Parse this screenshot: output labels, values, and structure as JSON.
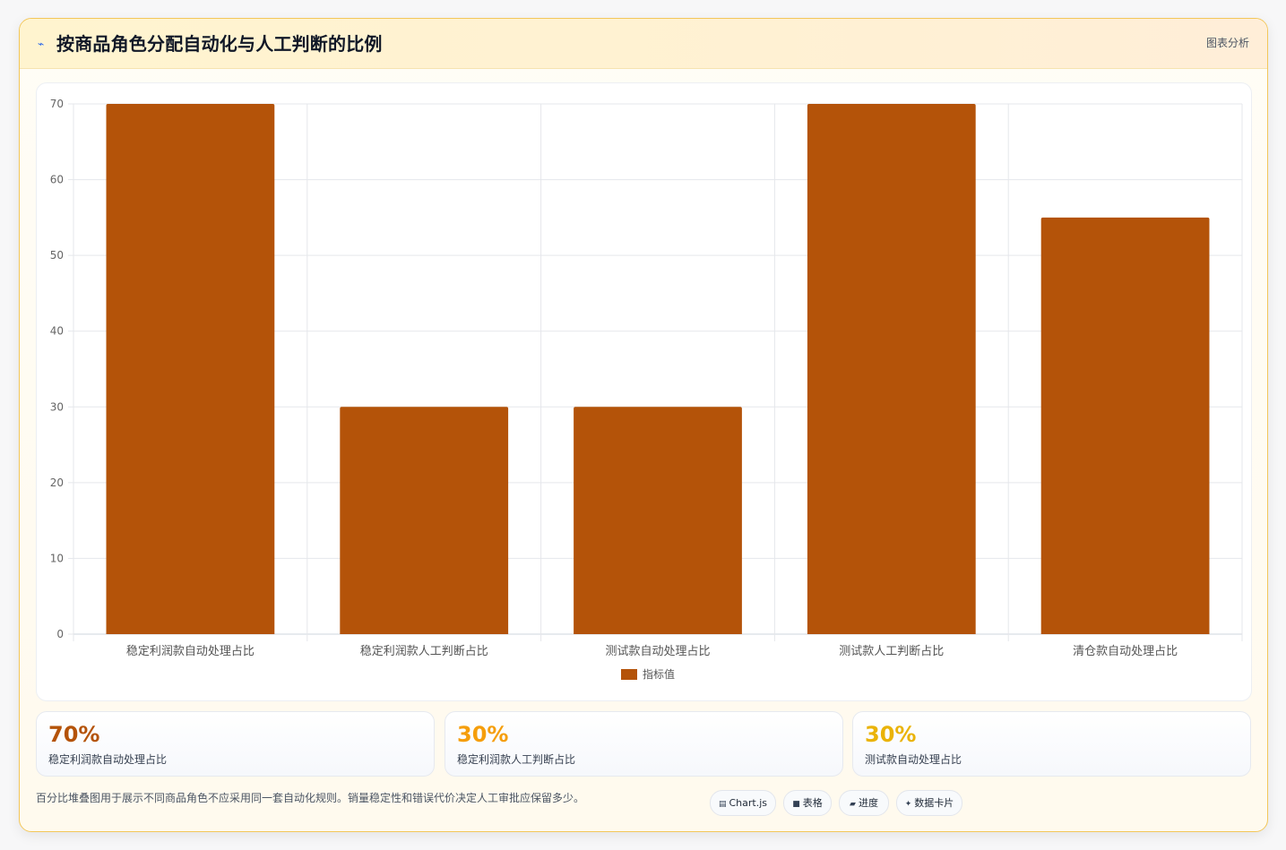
{
  "header": {
    "logo_icon": "chart-trend-icon",
    "logo_glyph": "⌁",
    "title": "按商品角色分配自动化与人工判断的比例",
    "badge": "图表分析"
  },
  "chart_data": {
    "type": "bar",
    "categories": [
      "稳定利润款自动处理占比",
      "稳定利润款人工判断占比",
      "测试款自动处理占比",
      "测试款人工判断占比",
      "清仓款自动处理占比"
    ],
    "series": [
      {
        "name": "指标值",
        "values": [
          70,
          30,
          30,
          70,
          55
        ],
        "color": "#b45309"
      }
    ],
    "ylim": [
      0,
      70
    ],
    "yticks": [
      0,
      10,
      20,
      30,
      40,
      50,
      60,
      70
    ],
    "grid": true,
    "legend": "bottom-center"
  },
  "stats": [
    {
      "value": "70%",
      "label": "稳定利润款自动处理占比",
      "color": "#b45309"
    },
    {
      "value": "30%",
      "label": "稳定利润款人工判断占比",
      "color": "#f59e0b"
    },
    {
      "value": "30%",
      "label": "测试款自动处理占比",
      "color": "#eab308"
    }
  ],
  "footer": {
    "note": "百分比堆叠图用于展示不同商品角色不应采用同一套自动化规则。销量稳定性和错误代价决定人工审批应保留多少。",
    "pills": [
      {
        "icon": "chart-icon",
        "glyph": "▤",
        "label": "Chart.js"
      },
      {
        "icon": "table-icon",
        "glyph": "■",
        "label": "表格"
      },
      {
        "icon": "progress-icon",
        "glyph": "▰",
        "label": "进度"
      },
      {
        "icon": "sparkle-icon",
        "glyph": "✦",
        "label": "数据卡片"
      }
    ]
  }
}
